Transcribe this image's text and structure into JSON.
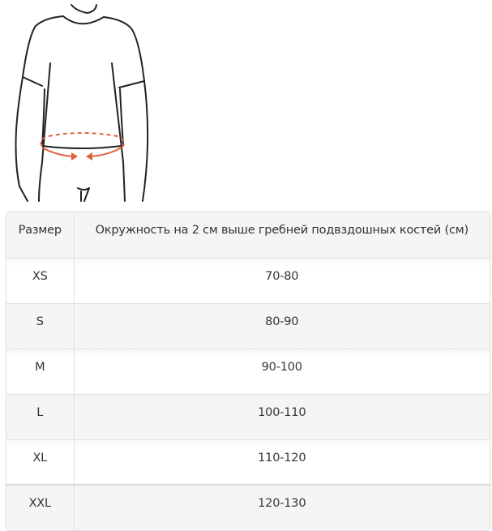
{
  "figure": {
    "description_icon": "waist-measurement-figure",
    "accent_color": "#e0623f"
  },
  "table": {
    "headers": [
      "Размер",
      "Окружность на 2 см выше гребней подвздошных костей (см)"
    ],
    "rows": [
      [
        "XS",
        "70-80"
      ],
      [
        "S",
        "80-90"
      ],
      [
        "M",
        "90-100"
      ],
      [
        "L",
        "100-110"
      ],
      [
        "XL",
        "110-120"
      ],
      [
        "XXL",
        "120-130"
      ]
    ]
  }
}
